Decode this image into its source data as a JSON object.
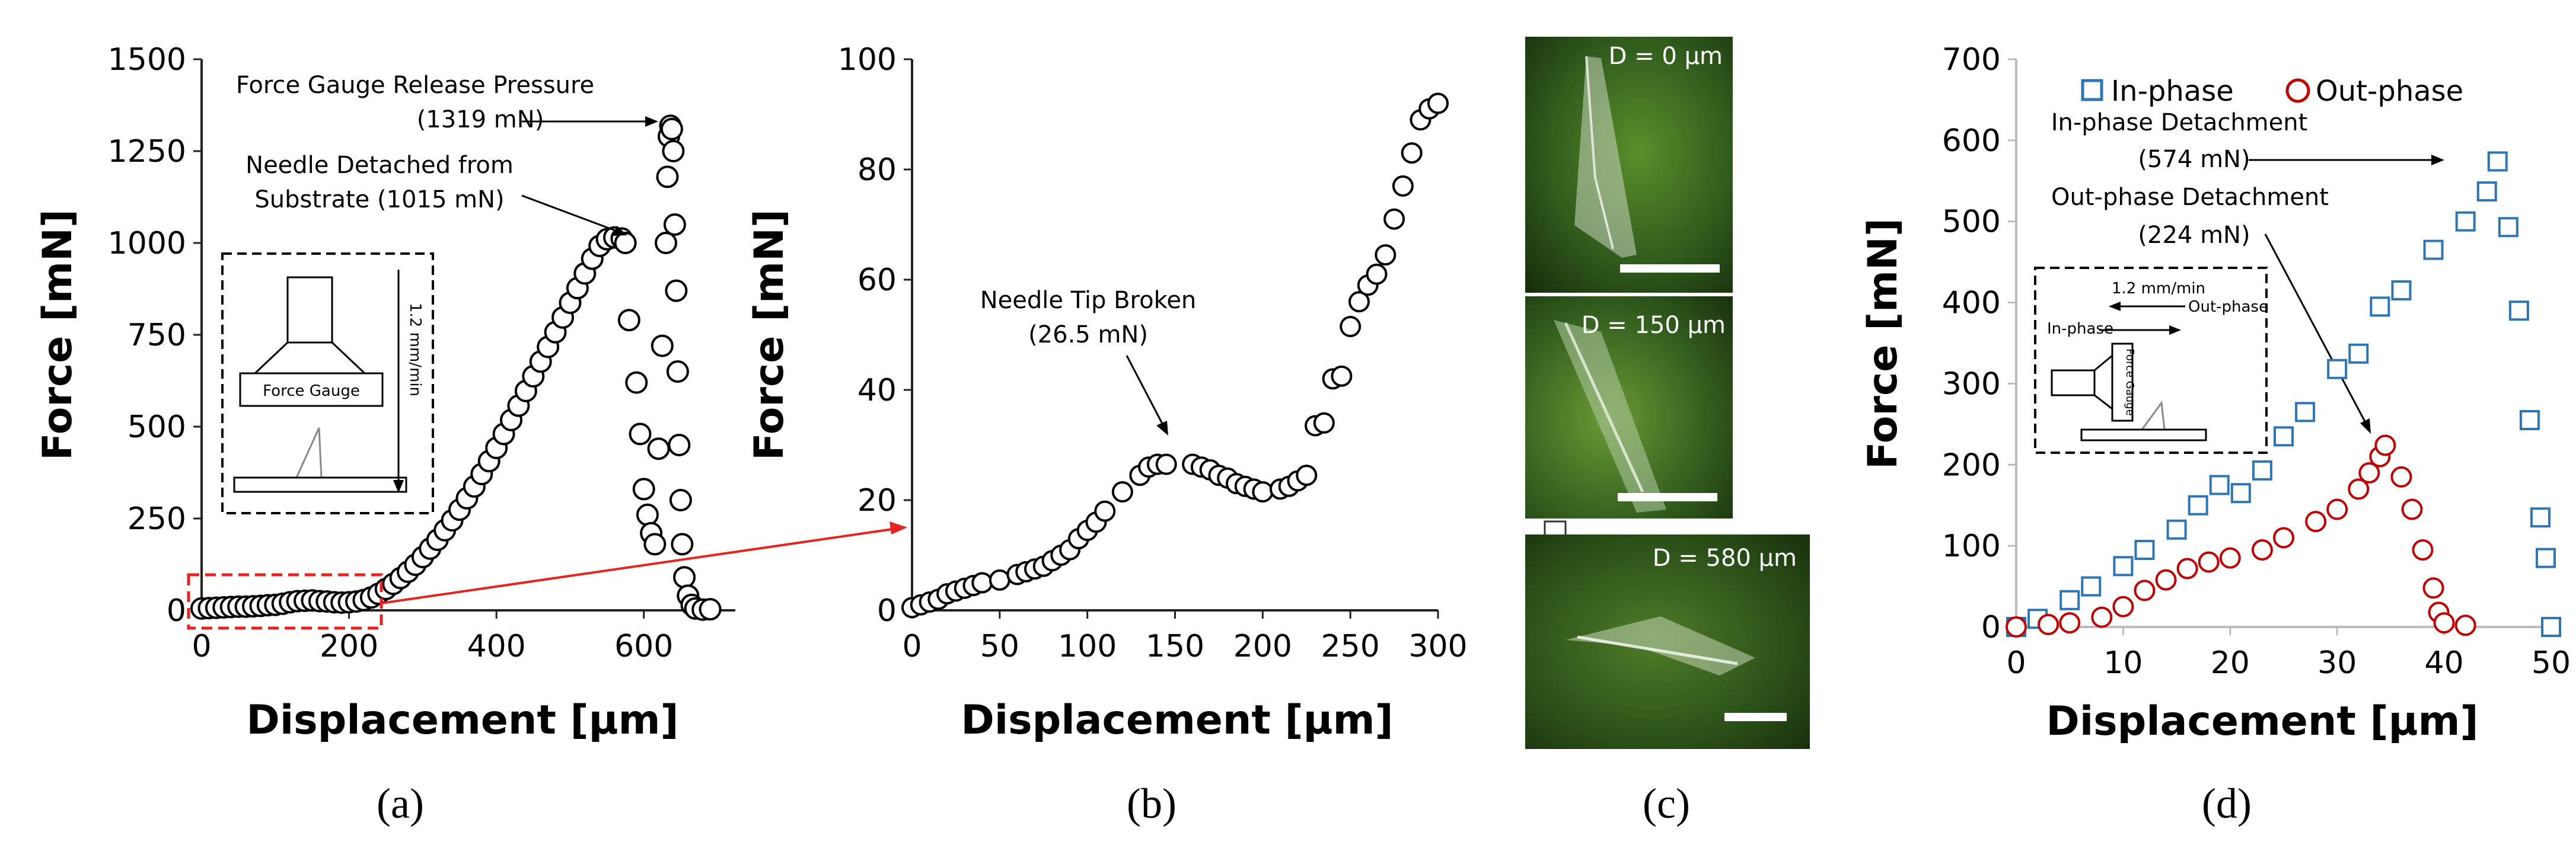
{
  "panels": {
    "a": {
      "letter": "(a)",
      "annotations": {
        "release_title": "Force Gauge Release Pressure",
        "release_value": "(1319 mN)",
        "detached_line1": "Needle Detached from",
        "detached_line2": "Substrate (1015 mN)"
      },
      "inset": {
        "gauge_label": "Force Gauge",
        "speed_label": "1.2 mm/min"
      }
    },
    "b": {
      "letter": "(b)",
      "annotations": {
        "broken_line1": "Needle Tip Broken",
        "broken_line2": "(26.5 mN)"
      }
    },
    "c": {
      "letter": "(c)",
      "photos": [
        {
          "label": "D = 0 µm"
        },
        {
          "label": "D = 150 µm"
        },
        {
          "label": "D = 580 µm"
        }
      ]
    },
    "d": {
      "letter": "(d)",
      "annotations": {
        "in_title": "In-phase Detachment",
        "in_value": "(574 mN)",
        "out_title": "Out-phase Detachment",
        "out_value": "(224 mN)"
      },
      "inset": {
        "speed_label": "1.2 mm/min",
        "out_label": "Out-phase",
        "in_label": "In-phase",
        "gauge_label": "Force Gauge"
      }
    }
  },
  "colors": {
    "in_phase": "#2e75b6",
    "out_phase": "#c00000",
    "highlight": "#e8231f",
    "photo_bg": "#2f5a1c"
  },
  "chart_data": [
    {
      "id": "a",
      "type": "scatter",
      "title": "",
      "xlabel": "Displacement [µm]",
      "ylabel": "Force [mN]",
      "xlim": [
        0,
        700
      ],
      "ylim": [
        0,
        1500
      ],
      "xticks": [
        0,
        200,
        400,
        600
      ],
      "yticks": [
        0,
        250,
        500,
        750,
        1000,
        1250,
        1500
      ],
      "series": [
        {
          "name": "Force",
          "x": [
            0,
            10,
            20,
            30,
            40,
            50,
            60,
            70,
            80,
            90,
            100,
            110,
            120,
            130,
            140,
            150,
            160,
            170,
            180,
            190,
            200,
            210,
            220,
            230,
            240,
            250,
            260,
            270,
            280,
            290,
            300,
            310,
            320,
            330,
            340,
            350,
            360,
            370,
            380,
            390,
            400,
            410,
            420,
            430,
            440,
            450,
            460,
            470,
            480,
            490,
            500,
            510,
            520,
            530,
            540,
            550,
            560,
            570,
            575,
            580,
            590,
            595,
            600,
            605,
            610,
            615,
            620,
            625,
            630,
            632,
            634,
            636,
            638,
            640,
            642,
            644,
            646,
            648,
            650,
            652,
            655,
            660,
            665,
            670,
            680,
            690
          ],
          "y": [
            5,
            6,
            7,
            8,
            9,
            10,
            10,
            11,
            12,
            14,
            15,
            18,
            22,
            25,
            26,
            27,
            25,
            24,
            22,
            21,
            22,
            24,
            28,
            35,
            45,
            58,
            72,
            88,
            105,
            124,
            145,
            168,
            192,
            218,
            245,
            274,
            305,
            337,
            371,
            406,
            442,
            480,
            518,
            557,
            597,
            637,
            677,
            717,
            757,
            797,
            837,
            877,
            917,
            957,
            992,
            1010,
            1015,
            1012,
            1000,
            790,
            620,
            480,
            330,
            260,
            210,
            180,
            440,
            720,
            1000,
            1180,
            1290,
            1319,
            1310,
            1250,
            1050,
            870,
            650,
            450,
            300,
            180,
            90,
            40,
            15,
            5,
            2,
            3
          ]
        }
      ]
    },
    {
      "id": "b",
      "type": "scatter",
      "title": "",
      "xlabel": "Displacement [µm]",
      "ylabel": "Force [mN]",
      "xlim": [
        0,
        300
      ],
      "ylim": [
        0,
        100
      ],
      "xticks": [
        0,
        50,
        100,
        150,
        200,
        250,
        300
      ],
      "yticks": [
        0,
        20,
        40,
        60,
        80,
        100
      ],
      "series": [
        {
          "name": "Force",
          "x": [
            0,
            5,
            10,
            15,
            20,
            25,
            30,
            35,
            40,
            50,
            60,
            65,
            70,
            75,
            80,
            85,
            90,
            95,
            100,
            105,
            110,
            120,
            130,
            135,
            140,
            145,
            160,
            165,
            170,
            175,
            180,
            185,
            190,
            195,
            200,
            210,
            215,
            220,
            225,
            230,
            235,
            240,
            245,
            250,
            255,
            260,
            265,
            270,
            275,
            280,
            285,
            290,
            295,
            300
          ],
          "y": [
            0.5,
            1,
            1.5,
            2,
            3,
            3.5,
            4,
            4.5,
            5,
            5.5,
            6.5,
            7,
            7.5,
            8,
            9,
            10,
            11,
            13,
            14.5,
            16,
            18,
            21.5,
            24.5,
            26,
            26.5,
            26.5,
            26.5,
            26,
            25.5,
            24.5,
            24,
            23,
            22.5,
            22,
            21.5,
            22,
            22.5,
            23.5,
            24.5,
            33.5,
            34,
            42,
            42.5,
            51.5,
            56,
            59,
            61,
            64.5,
            71,
            77,
            83,
            89,
            91,
            92
          ]
        }
      ]
    },
    {
      "id": "d",
      "type": "scatter",
      "title": "",
      "xlabel": "Displacement [µm]",
      "ylabel": "Force [mN]",
      "xlim": [
        0,
        50
      ],
      "ylim": [
        0,
        700
      ],
      "xticks": [
        0,
        10,
        20,
        30,
        40,
        50
      ],
      "yticks": [
        0,
        100,
        200,
        300,
        400,
        500,
        600,
        700
      ],
      "legend": "top-left",
      "series": [
        {
          "name": "In-phase",
          "marker": "square",
          "x": [
            0,
            2,
            5,
            7,
            10,
            12,
            15,
            17,
            19,
            21,
            23,
            25,
            27,
            30,
            32,
            34,
            36,
            39,
            42,
            44,
            45,
            46,
            47,
            48,
            49,
            49.5,
            50
          ],
          "y": [
            0,
            10,
            33,
            50,
            75,
            95,
            120,
            150,
            175,
            165,
            193,
            235,
            265,
            318,
            337,
            395,
            415,
            465,
            500,
            537,
            574,
            493,
            390,
            255,
            135,
            85,
            0
          ]
        },
        {
          "name": "Out-phase",
          "marker": "circle",
          "x": [
            0,
            3,
            5,
            8,
            10,
            12,
            14,
            16,
            18,
            20,
            23,
            25,
            28,
            30,
            32,
            33,
            34,
            34.5,
            36,
            37,
            38,
            39,
            39.5,
            40,
            42
          ],
          "y": [
            0,
            3,
            5,
            12,
            25,
            45,
            58,
            72,
            80,
            85,
            95,
            110,
            130,
            145,
            170,
            190,
            210,
            224,
            185,
            145,
            95,
            48,
            18,
            5,
            2
          ]
        }
      ]
    }
  ]
}
